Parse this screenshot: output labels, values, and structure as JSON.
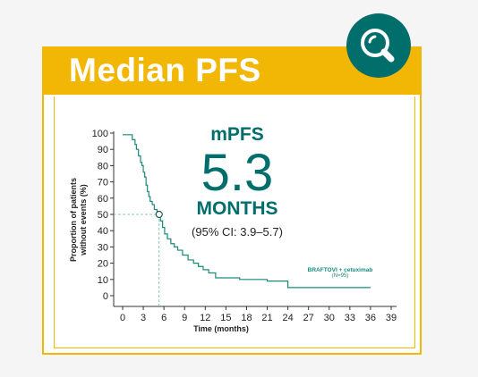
{
  "banner": {
    "title": "Median PFS"
  },
  "icon": {
    "name": "magnifier-icon"
  },
  "summary": {
    "label": "mPFS",
    "value": "5.3",
    "unit": "MONTHS",
    "ci": "(95% CI: 3.9–5.7)"
  },
  "legend": {
    "series_name": "BRAFTOVI + cetuximab",
    "n": "(N=95)"
  },
  "colors": {
    "accent": "#f2b705",
    "teal": "#006e6b",
    "curve": "#1a8a7a"
  },
  "chart_data": {
    "type": "line",
    "xlabel": "Time (months)",
    "ylabel": "Proportion of patients without events (%)",
    "xlim": [
      0,
      39
    ],
    "ylim": [
      0,
      100
    ],
    "xticks": [
      "0",
      "3",
      "6",
      "9",
      "12",
      "15",
      "18",
      "21",
      "24",
      "27",
      "30",
      "33",
      "36",
      "39"
    ],
    "yticks": [
      "0",
      "10",
      "20",
      "30",
      "40",
      "50",
      "60",
      "70",
      "80",
      "90",
      "100"
    ],
    "median": {
      "x": 5.3,
      "y": 50
    },
    "series": [
      {
        "name": "BRAFTOVI + cetuximab",
        "x": [
          0,
          1.4,
          1.8,
          2.0,
          2.3,
          2.6,
          2.8,
          3.0,
          3.2,
          3.4,
          3.6,
          3.8,
          4.0,
          4.3,
          4.6,
          5.0,
          5.3,
          5.5,
          5.8,
          6.1,
          6.5,
          7.0,
          7.5,
          8.0,
          8.7,
          9.5,
          10.3,
          11.0,
          11.7,
          12.5,
          13.5,
          17.0,
          21.0,
          24.0,
          36.0
        ],
        "y": [
          99,
          96,
          93,
          90,
          86,
          82,
          80,
          76,
          73,
          68,
          64,
          61,
          58,
          56,
          53,
          51,
          50,
          46,
          42,
          38,
          35,
          32,
          30,
          28,
          25,
          22,
          20,
          18,
          16,
          14,
          11,
          10,
          9,
          5,
          5
        ]
      }
    ]
  }
}
